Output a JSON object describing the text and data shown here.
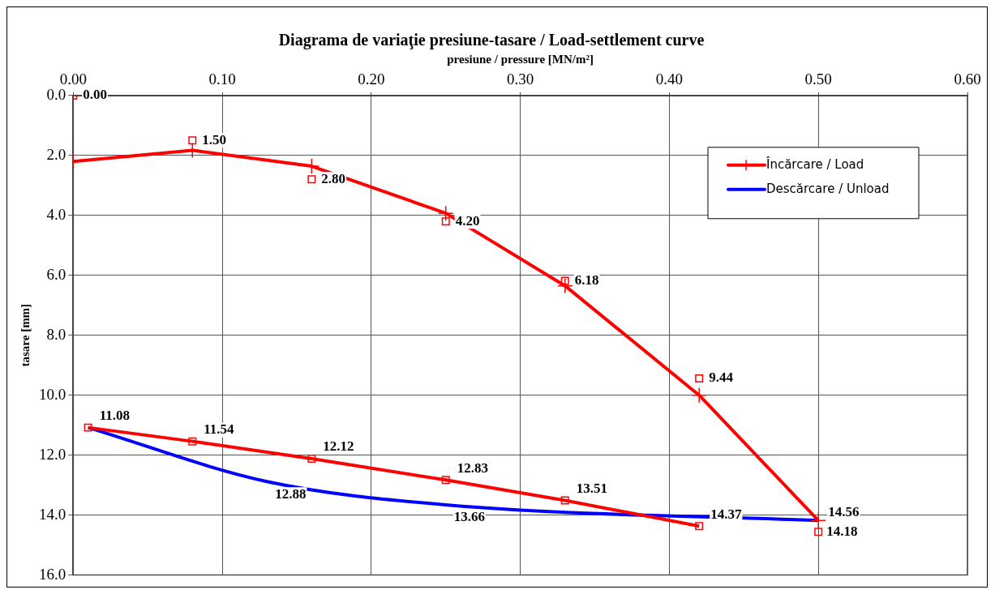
{
  "chart_data": {
    "type": "line",
    "title": "Diagrama de variaţie presiune-tasare / Load-settlement curve",
    "xlabel": "presiune / pressure [MN/m²]",
    "ylabel": "tasare [mm]",
    "xlim": [
      0,
      0.6
    ],
    "xticks": [
      {
        "value": 0,
        "label": "0.00"
      },
      {
        "value": 0.1,
        "label": "0.10"
      },
      {
        "value": 0.2,
        "label": "0.20"
      },
      {
        "value": 0.3,
        "label": "0.30"
      },
      {
        "value": 0.4,
        "label": "0.40"
      },
      {
        "value": 0.5,
        "label": "0.50"
      },
      {
        "value": 0.6,
        "label": "0.60"
      }
    ],
    "ylim": [
      16,
      0
    ],
    "yticks": [
      {
        "value": 0,
        "label": "0.0"
      },
      {
        "value": 2,
        "label": "2.0"
      },
      {
        "value": 4,
        "label": "4.0"
      },
      {
        "value": 6,
        "label": "6.0"
      },
      {
        "value": 8,
        "label": "8.0"
      },
      {
        "value": 10,
        "label": "10.0"
      },
      {
        "value": 12,
        "label": "12.0"
      },
      {
        "value": 14,
        "label": "14.0"
      },
      {
        "value": 16,
        "label": "16.0"
      }
    ],
    "grid": true,
    "legend": "top right",
    "series": [
      {
        "name": "Încărcare / Load",
        "type": "line",
        "color": "#ff0000",
        "marker": "cross",
        "x": [
          0,
          0.08,
          0.16,
          0.25,
          0.33,
          0.42,
          0.5
        ],
        "values": [
          2.2,
          1.83,
          2.36,
          3.93,
          6.35,
          10.0,
          14.18
        ]
      },
      {
        "type": "line",
        "color": "#ff0000",
        "marker": "square",
        "x": [
          0.01,
          0.08,
          0.16,
          0.25,
          0.33,
          0.42
        ],
        "values": [
          11.08,
          11.54,
          12.12,
          12.83,
          13.51,
          14.37
        ],
        "value_labels": [
          "11.08",
          "11.54",
          "12.12",
          "12.83",
          "13.51",
          "14.37"
        ]
      },
      {
        "type": "scatter",
        "color": "#ff0000",
        "marker": "square",
        "x": [
          0,
          0.08,
          0.16,
          0.25,
          0.33,
          0.42,
          0.5
        ],
        "values": [
          0,
          1.5,
          2.8,
          4.2,
          6.18,
          9.44,
          14.56
        ],
        "value_labels": [
          "0.00",
          "1.50",
          "2.80",
          "4.20",
          "6.18",
          "9.44",
          "14.56"
        ]
      },
      {
        "name": "Descărcare / Unload",
        "type": "line",
        "color": "#0000ff",
        "marker": "none",
        "x": [
          0.01,
          0.13,
          0.25,
          0.5
        ],
        "values": [
          11.08,
          12.88,
          13.66,
          14.18
        ],
        "value_labels": [
          null,
          "12.88",
          "13.66",
          "14.18"
        ]
      }
    ]
  }
}
